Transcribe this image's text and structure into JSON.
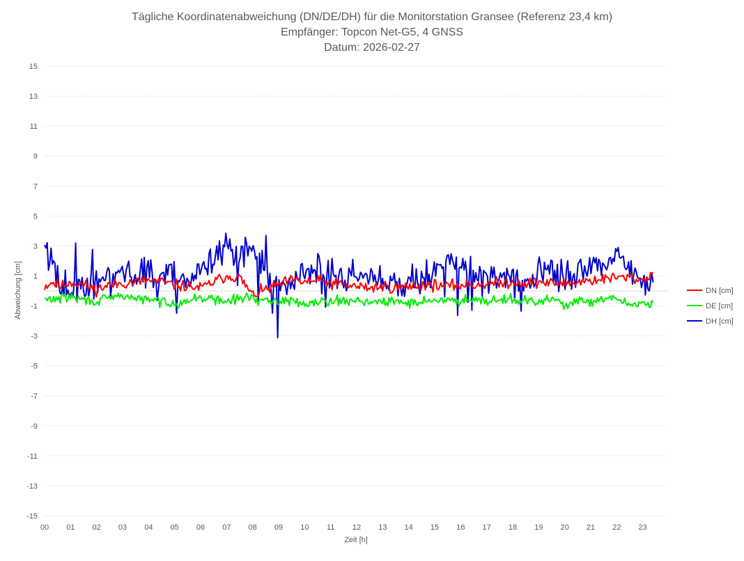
{
  "chart_data": {
    "type": "line",
    "title_lines": [
      "Tägliche Koordinatenabweichung (DN/DE/DH) für die Monitorstation Gransee (Referenz 23,4 km)",
      "Empfänger: Topcon Net-G5, 4 GNSS",
      "Datum: 2026-02-27"
    ],
    "xlabel": "Zeit [h]",
    "ylabel": "Abweichung [cm]",
    "xlim": [
      0,
      24
    ],
    "ylim": [
      -15,
      15
    ],
    "x_ticks": [
      "00",
      "01",
      "02",
      "03",
      "04",
      "05",
      "06",
      "07",
      "08",
      "09",
      "10",
      "11",
      "12",
      "13",
      "14",
      "15",
      "16",
      "17",
      "18",
      "19",
      "20",
      "21",
      "22",
      "23"
    ],
    "y_ticks": [
      15,
      13,
      11,
      9,
      7,
      5,
      3,
      1,
      -1,
      -3,
      -5,
      -7,
      -9,
      -11,
      -13,
      -15
    ],
    "grid": "horizontal-dotted",
    "legend_position": "right",
    "x_end": 23.4,
    "series": [
      {
        "name": "DN [cm]",
        "color": "#ff0000",
        "keypoints": [
          [
            0,
            0.3
          ],
          [
            0.3,
            0.6
          ],
          [
            0.6,
            0.3
          ],
          [
            1.0,
            0.6
          ],
          [
            1.5,
            0.4
          ],
          [
            2.0,
            0.1
          ],
          [
            2.5,
            0.4
          ],
          [
            3.0,
            0.5
          ],
          [
            3.5,
            0.6
          ],
          [
            4.0,
            0.7
          ],
          [
            4.5,
            0.6
          ],
          [
            5.0,
            0.4
          ],
          [
            5.5,
            0.3
          ],
          [
            6.0,
            0.2
          ],
          [
            6.5,
            0.6
          ],
          [
            7.0,
            1.0
          ],
          [
            7.5,
            0.9
          ],
          [
            8.0,
            -0.3
          ],
          [
            8.5,
            0.1
          ],
          [
            9.0,
            0.4
          ],
          [
            9.5,
            0.7
          ],
          [
            10.0,
            0.6
          ],
          [
            10.5,
            0.7
          ],
          [
            11.0,
            0.5
          ],
          [
            11.5,
            0.4
          ],
          [
            12.0,
            0.3
          ],
          [
            12.5,
            0.2
          ],
          [
            13.0,
            0.3
          ],
          [
            13.5,
            0.2
          ],
          [
            14.0,
            0.3
          ],
          [
            14.5,
            0.4
          ],
          [
            15.0,
            0.4
          ],
          [
            15.5,
            0.3
          ],
          [
            16.0,
            0.4
          ],
          [
            16.5,
            0.4
          ],
          [
            17.0,
            0.5
          ],
          [
            17.5,
            0.5
          ],
          [
            18.0,
            0.6
          ],
          [
            18.5,
            0.5
          ],
          [
            19.0,
            0.6
          ],
          [
            19.5,
            0.5
          ],
          [
            20.0,
            0.5
          ],
          [
            20.5,
            0.6
          ],
          [
            21.0,
            0.7
          ],
          [
            21.5,
            0.8
          ],
          [
            22.0,
            0.9
          ],
          [
            22.5,
            0.9
          ],
          [
            23.0,
            0.7
          ],
          [
            23.4,
            1.2
          ]
        ],
        "noise": 0.35,
        "seed": 11
      },
      {
        "name": "DE [cm]",
        "color": "#00ee00",
        "keypoints": [
          [
            0,
            -0.6
          ],
          [
            0.5,
            -0.5
          ],
          [
            1.0,
            -0.4
          ],
          [
            1.5,
            -0.6
          ],
          [
            2.0,
            -0.7
          ],
          [
            2.5,
            -0.5
          ],
          [
            3.0,
            -0.3
          ],
          [
            3.5,
            -0.5
          ],
          [
            4.0,
            -0.6
          ],
          [
            4.5,
            -0.7
          ],
          [
            5.0,
            -0.8
          ],
          [
            5.5,
            -0.7
          ],
          [
            6.0,
            -0.4
          ],
          [
            6.5,
            -0.6
          ],
          [
            7.0,
            -0.7
          ],
          [
            7.5,
            -0.5
          ],
          [
            8.0,
            -0.4
          ],
          [
            8.5,
            -0.8
          ],
          [
            9.0,
            -0.6
          ],
          [
            9.5,
            -0.7
          ],
          [
            10.0,
            -0.8
          ],
          [
            10.5,
            -0.7
          ],
          [
            11.0,
            -0.6
          ],
          [
            11.5,
            -0.7
          ],
          [
            12.0,
            -0.6
          ],
          [
            12.5,
            -0.7
          ],
          [
            13.0,
            -0.8
          ],
          [
            13.5,
            -0.7
          ],
          [
            14.0,
            -0.8
          ],
          [
            14.5,
            -0.7
          ],
          [
            15.0,
            -0.6
          ],
          [
            15.5,
            -0.7
          ],
          [
            16.0,
            -0.6
          ],
          [
            16.5,
            -0.5
          ],
          [
            17.0,
            -0.6
          ],
          [
            17.5,
            -0.6
          ],
          [
            18.0,
            -0.5
          ],
          [
            18.5,
            -0.7
          ],
          [
            19.0,
            -0.8
          ],
          [
            19.5,
            -0.5
          ],
          [
            20.0,
            -0.9
          ],
          [
            20.5,
            -0.7
          ],
          [
            21.0,
            -0.8
          ],
          [
            21.5,
            -0.6
          ],
          [
            22.0,
            -0.5
          ],
          [
            22.5,
            -0.9
          ],
          [
            23.0,
            -0.8
          ],
          [
            23.4,
            -0.8
          ]
        ],
        "noise": 0.3,
        "seed": 29
      },
      {
        "name": "DH [cm]",
        "color": "#0000cc",
        "keypoints": [
          [
            0,
            3.0
          ],
          [
            0.3,
            2.0
          ],
          [
            0.6,
            0.3
          ],
          [
            1.0,
            0.4
          ],
          [
            1.5,
            0.0
          ],
          [
            2.0,
            0.5
          ],
          [
            2.5,
            0.7
          ],
          [
            3.0,
            1.3
          ],
          [
            3.5,
            0.6
          ],
          [
            4.0,
            0.9
          ],
          [
            4.5,
            1.1
          ],
          [
            5.0,
            1.4
          ],
          [
            5.5,
            0.7
          ],
          [
            6.0,
            1.1
          ],
          [
            6.5,
            2.2
          ],
          [
            7.0,
            3.3
          ],
          [
            7.5,
            2.2
          ],
          [
            8.0,
            3.2
          ],
          [
            8.3,
            2.0
          ],
          [
            8.7,
            0.8
          ],
          [
            9.0,
            0.3
          ],
          [
            9.5,
            0.6
          ],
          [
            10.0,
            1.2
          ],
          [
            10.5,
            1.5
          ],
          [
            11.0,
            1.3
          ],
          [
            11.5,
            0.9
          ],
          [
            12.0,
            1.1
          ],
          [
            12.5,
            0.9
          ],
          [
            13.0,
            0.6
          ],
          [
            13.5,
            0.5
          ],
          [
            14.0,
            0.8
          ],
          [
            14.5,
            0.7
          ],
          [
            15.0,
            1.8
          ],
          [
            15.5,
            2.0
          ],
          [
            16.0,
            1.4
          ],
          [
            16.5,
            1.4
          ],
          [
            17.0,
            0.7
          ],
          [
            17.5,
            1.0
          ],
          [
            18.0,
            0.6
          ],
          [
            18.5,
            0.8
          ],
          [
            19.0,
            1.2
          ],
          [
            19.5,
            1.4
          ],
          [
            20.0,
            0.9
          ],
          [
            20.5,
            1.1
          ],
          [
            21.0,
            1.6
          ],
          [
            21.5,
            1.4
          ],
          [
            22.0,
            2.6
          ],
          [
            22.5,
            1.2
          ],
          [
            23.0,
            0.8
          ],
          [
            23.4,
            0.4
          ]
        ],
        "noise": 1.0,
        "seed": 57
      }
    ]
  }
}
